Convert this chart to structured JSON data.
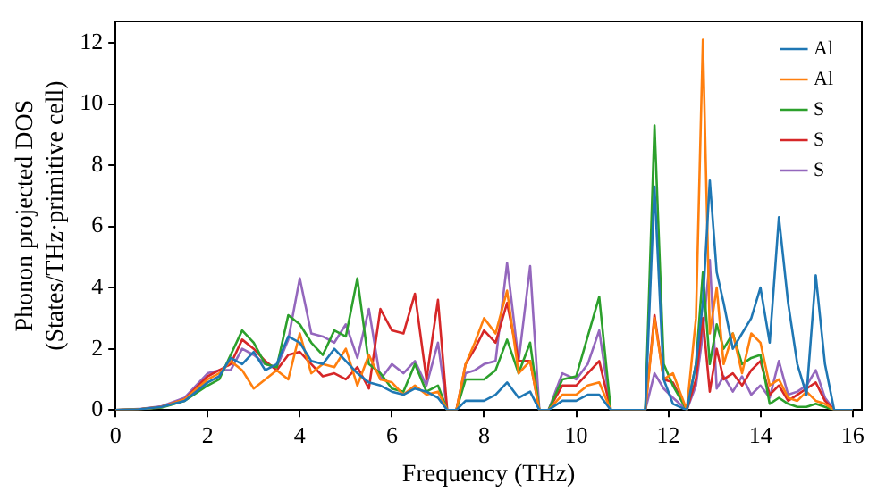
{
  "chart_data": {
    "type": "line",
    "xlabel": "Frequency (THz)",
    "ylabel": "Phonon projected DOS\n(States/THz·primitive cell)",
    "x": [
      0,
      0.5,
      1,
      1.5,
      2,
      2.25,
      2.5,
      2.75,
      3,
      3.25,
      3.5,
      3.75,
      4,
      4.25,
      4.5,
      4.75,
      5,
      5.25,
      5.5,
      5.75,
      6,
      6.25,
      6.5,
      6.75,
      7,
      7.2,
      7.4,
      7.6,
      7.8,
      8,
      8.25,
      8.5,
      8.75,
      9,
      9.2,
      9.4,
      9.7,
      10,
      10.25,
      10.5,
      10.75,
      11.5,
      11.7,
      11.9,
      12.1,
      12.4,
      12.6,
      12.75,
      12.9,
      13.05,
      13.2,
      13.4,
      13.6,
      13.8,
      14,
      14.2,
      14.4,
      14.6,
      14.8,
      15,
      15.2,
      15.4,
      15.6,
      16
    ],
    "xlim": [
      0,
      16.2
    ],
    "xticks": [
      0,
      2,
      4,
      6,
      8,
      10,
      12,
      14,
      16
    ],
    "ylim": [
      0,
      12.7
    ],
    "yticks": [
      0,
      2,
      4,
      6,
      8,
      10,
      12
    ],
    "legend": "top right",
    "marker": "none",
    "line_style": "solid",
    "grid": false,
    "series": [
      {
        "name": "Al",
        "color": "#1f77b4",
        "values": [
          0,
          0.02,
          0.1,
          0.3,
          0.9,
          1.1,
          1.7,
          1.5,
          1.9,
          1.3,
          1.5,
          2.4,
          2.2,
          1.6,
          1.5,
          2.0,
          1.6,
          1.2,
          0.9,
          0.8,
          0.6,
          0.5,
          0.7,
          0.6,
          0.4,
          0,
          0,
          0.3,
          0.3,
          0.3,
          0.5,
          0.9,
          0.4,
          0.6,
          0,
          0,
          0.3,
          0.3,
          0.5,
          0.5,
          0,
          0,
          7.3,
          1.0,
          0.2,
          0,
          1.5,
          3.5,
          7.5,
          4.5,
          3.5,
          2.0,
          2.5,
          3.0,
          4.0,
          2.2,
          6.3,
          3.5,
          1.5,
          0.5,
          4.4,
          1.5,
          0,
          0
        ]
      },
      {
        "name": "Al",
        "color": "#ff7f0e",
        "values": [
          0,
          0.02,
          0.1,
          0.35,
          1.0,
          1.2,
          1.6,
          1.3,
          0.7,
          1.0,
          1.3,
          1.0,
          2.5,
          1.2,
          1.5,
          1.4,
          2.0,
          0.8,
          1.8,
          1.0,
          0.9,
          0.5,
          0.8,
          0.5,
          0.6,
          0,
          0,
          1.5,
          2.2,
          3.0,
          2.5,
          3.9,
          1.2,
          1.6,
          0,
          0,
          0.5,
          0.5,
          0.8,
          0.9,
          0,
          0,
          3.0,
          1.0,
          1.2,
          0,
          3.0,
          12.1,
          2.5,
          4.0,
          1.5,
          2.5,
          1.2,
          2.5,
          2.2,
          0.8,
          1.0,
          0.4,
          0.3,
          0.6,
          0.3,
          0.2,
          0,
          0
        ]
      },
      {
        "name": "S",
        "color": "#2ca02c",
        "values": [
          0,
          0.02,
          0.08,
          0.3,
          0.8,
          1.0,
          1.8,
          2.6,
          2.2,
          1.5,
          1.4,
          3.1,
          2.8,
          2.2,
          1.8,
          2.6,
          2.4,
          4.3,
          1.5,
          1.2,
          0.7,
          0.6,
          1.5,
          0.6,
          0.8,
          0,
          0,
          1.0,
          1.0,
          1.0,
          1.3,
          2.3,
          1.2,
          2.2,
          0,
          0,
          1.0,
          1.1,
          2.4,
          3.7,
          0,
          0,
          9.3,
          1.5,
          0.8,
          0,
          1.5,
          4.5,
          1.5,
          2.8,
          2.0,
          2.5,
          1.5,
          1.7,
          1.8,
          0.2,
          0.4,
          0.2,
          0.1,
          0.1,
          0.2,
          0.1,
          0,
          0
        ]
      },
      {
        "name": "S",
        "color": "#d62728",
        "values": [
          0,
          0.02,
          0.1,
          0.35,
          1.1,
          1.3,
          1.5,
          2.3,
          2.0,
          1.6,
          1.3,
          1.8,
          1.9,
          1.5,
          1.1,
          1.2,
          1.0,
          1.4,
          0.7,
          3.3,
          2.6,
          2.5,
          3.8,
          1.0,
          3.6,
          0,
          0,
          1.5,
          2.0,
          2.6,
          2.2,
          3.5,
          1.6,
          1.6,
          0,
          0,
          0.8,
          0.8,
          1.2,
          1.6,
          0,
          0,
          3.1,
          1.0,
          0.9,
          0,
          1.0,
          3.0,
          0.6,
          2.0,
          1.0,
          1.2,
          0.8,
          1.3,
          1.6,
          0.5,
          0.8,
          0.3,
          0.5,
          0.7,
          0.9,
          0.3,
          0,
          0
        ]
      },
      {
        "name": "S",
        "color": "#9467bd",
        "values": [
          0,
          0.03,
          0.12,
          0.4,
          1.2,
          1.3,
          1.3,
          2.0,
          1.8,
          1.5,
          1.4,
          2.3,
          4.3,
          2.5,
          2.4,
          2.2,
          2.8,
          1.7,
          3.3,
          1.0,
          1.5,
          1.2,
          1.6,
          0.8,
          2.2,
          0,
          0,
          1.2,
          1.3,
          1.5,
          1.6,
          4.8,
          1.6,
          4.7,
          0,
          0,
          1.2,
          1.0,
          1.5,
          2.6,
          0,
          0,
          1.2,
          0.7,
          0.4,
          0,
          0.8,
          2.5,
          4.9,
          0.7,
          1.1,
          0.6,
          1.1,
          0.5,
          0.8,
          0.4,
          1.6,
          0.5,
          0.6,
          0.8,
          1.3,
          0.4,
          0,
          0
        ]
      }
    ]
  }
}
